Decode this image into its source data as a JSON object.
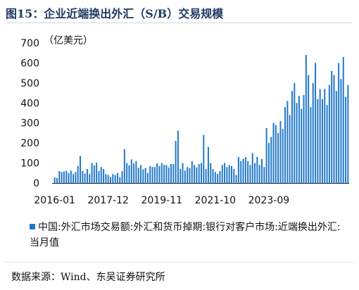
{
  "title": "图15：企业近端换出外汇（S/B）交易规模",
  "source": "数据来源：Wind、东吴证券研究所",
  "colors": {
    "bar": "#1f77c9",
    "title": "#1f3b64",
    "axis": "#222222"
  },
  "chart_data": {
    "type": "bar",
    "unit_label": "（亿美元）",
    "ylim": [
      0,
      700
    ],
    "yticks": [
      0,
      100,
      200,
      300,
      400,
      500,
      600,
      700
    ],
    "ytick_labels": [
      "0",
      "100",
      "200",
      "300",
      "400",
      "500",
      "600",
      "700"
    ],
    "xtick_labels": [
      "2016-01",
      "2017-12",
      "2019-11",
      "2021-10",
      "2023-09"
    ],
    "grid": false,
    "legend_position": "bottom",
    "series": [
      {
        "name": "中国:外汇市场交易额:外汇和货币掉期:银行对客户市场:近端换出外汇:当月值",
        "values": [
          28,
          25,
          60,
          55,
          58,
          62,
          50,
          62,
          45,
          55,
          85,
          135,
          60,
          48,
          70,
          45,
          100,
          88,
          102,
          60,
          80,
          70,
          45,
          40,
          30,
          45,
          40,
          50,
          30,
          60,
          170,
          100,
          88,
          118,
          98,
          110,
          75,
          90,
          68,
          75,
          50,
          85,
          80,
          80,
          98,
          85,
          100,
          90,
          90,
          78,
          95,
          95,
          210,
          262,
          70,
          100,
          62,
          80,
          75,
          110,
          90,
          78,
          95,
          100,
          240,
          70,
          180,
          100,
          70,
          55,
          45,
          60,
          90,
          100,
          80,
          90,
          85,
          70,
          40,
          130,
          110,
          120,
          130,
          110,
          90,
          150,
          100,
          130,
          90,
          120,
          80,
          275,
          200,
          230,
          300,
          290,
          250,
          310,
          270,
          380,
          410,
          340,
          460,
          500,
          400,
          435,
          370,
          440,
          640,
          540,
          380,
          500,
          600,
          420,
          470,
          420,
          470,
          390,
          490,
          560,
          540,
          460,
          600,
          520,
          630,
          430,
          490
        ]
      }
    ]
  }
}
